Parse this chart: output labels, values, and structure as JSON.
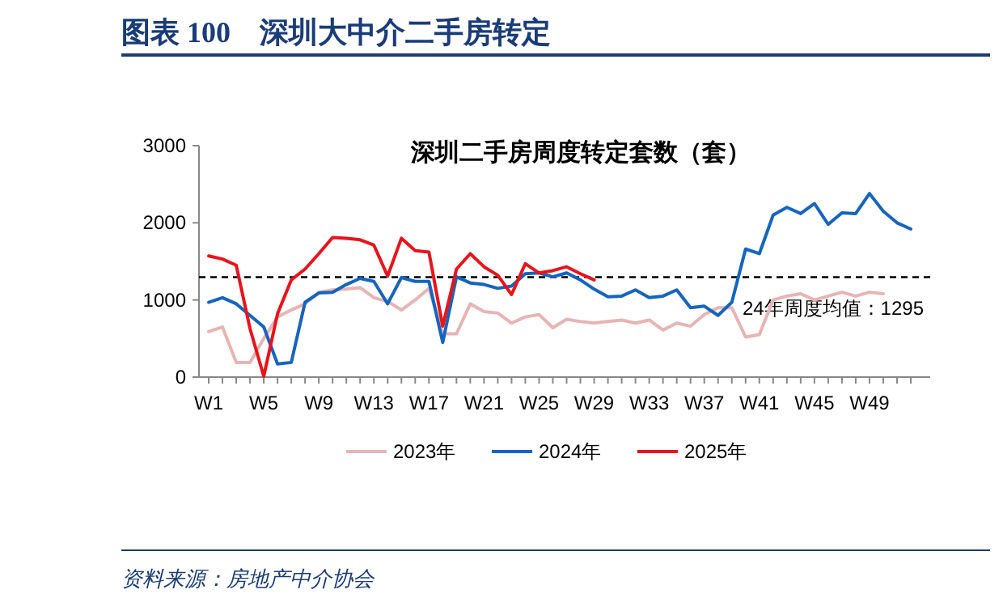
{
  "chart_data": {
    "type": "line",
    "title": "图表 100　深圳大中介二手房转定",
    "subtitle": "深圳二手房周度转定套数（套）",
    "categories": [
      "W1",
      null,
      null,
      null,
      "W5",
      null,
      null,
      null,
      "W9",
      null,
      null,
      null,
      "W13",
      null,
      null,
      null,
      "W17",
      null,
      null,
      null,
      "W21",
      null,
      null,
      null,
      "W25",
      null,
      null,
      null,
      "W29",
      null,
      null,
      null,
      "W33",
      null,
      null,
      null,
      "W37",
      null,
      null,
      null,
      "W41",
      null,
      null,
      null,
      "W45",
      null,
      null,
      null,
      "W49",
      null,
      null,
      null
    ],
    "series": [
      {
        "name": "2023年",
        "color": "#e8b4b4",
        "values": [
          590,
          650,
          190,
          190,
          500,
          780,
          870,
          950,
          1100,
          1130,
          1140,
          1160,
          1030,
          980,
          870,
          1000,
          1150,
          560,
          560,
          950,
          850,
          830,
          700,
          780,
          810,
          640,
          750,
          720,
          700,
          720,
          740,
          700,
          740,
          610,
          700,
          660,
          810,
          900,
          900,
          520,
          550,
          1000,
          1050,
          1080,
          1000,
          1050,
          1100,
          1050,
          1100,
          1080,
          null,
          null
        ]
      },
      {
        "name": "2024年",
        "color": "#1565c0",
        "values": [
          970,
          1030,
          950,
          800,
          650,
          170,
          190,
          970,
          1090,
          1100,
          1200,
          1280,
          1240,
          950,
          1290,
          1240,
          1240,
          450,
          1300,
          1220,
          1200,
          1150,
          1180,
          1340,
          1350,
          1300,
          1350,
          1260,
          1140,
          1040,
          1050,
          1130,
          1030,
          1050,
          1130,
          900,
          920,
          800,
          970,
          1660,
          1600,
          2100,
          2200,
          2120,
          2250,
          1980,
          2130,
          2120,
          2380,
          2150,
          2000,
          1920
        ]
      },
      {
        "name": "2025年",
        "color": "#e8141c",
        "values": [
          1570,
          1530,
          1450,
          630,
          10,
          820,
          1260,
          1400,
          1600,
          1810,
          1800,
          1780,
          1710,
          1310,
          1800,
          1640,
          1620,
          660,
          1400,
          1600,
          1430,
          1320,
          1070,
          1470,
          1350,
          1380,
          1430,
          1340,
          1260,
          null,
          null,
          null,
          null,
          null,
          null,
          null,
          null,
          null,
          null,
          null,
          null,
          null,
          null,
          null,
          null,
          null,
          null,
          null,
          null,
          null,
          null,
          null
        ]
      }
    ],
    "ylim": [
      0,
      3000
    ],
    "yticks": [
      0,
      1000,
      2000,
      3000
    ],
    "grid": false,
    "legend": "bottom",
    "marker": "none",
    "line_style": "solid",
    "ref_lines": [
      {
        "axis": "y",
        "value": 1295,
        "label": "24年周度均值：1295",
        "color": "#000000",
        "line_style": "dashed"
      }
    ],
    "annotations": [
      "资料来源：房地产中介协会"
    ]
  }
}
